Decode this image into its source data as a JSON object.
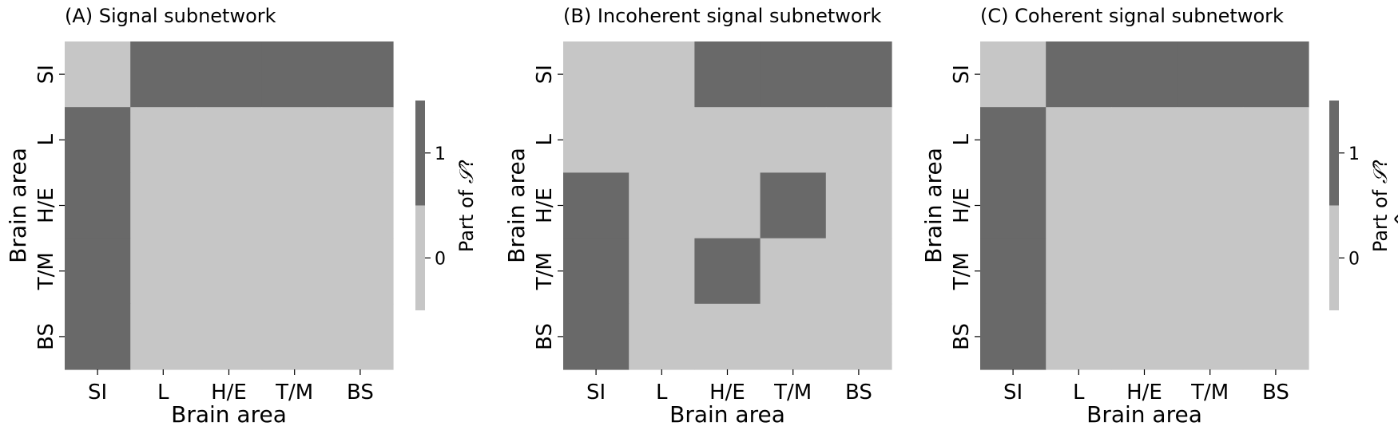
{
  "colors": {
    "off": "#c6c6c6",
    "on": "#696969"
  },
  "chart_data": [
    {
      "type": "heatmap",
      "title": "(A) Signal subnetwork",
      "xlabel": "Brain area",
      "ylabel": "Brain area",
      "categories": [
        "SI",
        "L",
        "H/E",
        "T/M",
        "BS"
      ],
      "values": [
        [
          0,
          1,
          1,
          1,
          1
        ],
        [
          1,
          0,
          0,
          0,
          0
        ],
        [
          1,
          0,
          0,
          0,
          0
        ],
        [
          1,
          0,
          0,
          0,
          0
        ],
        [
          1,
          0,
          0,
          0,
          0
        ]
      ],
      "colorbar": {
        "label_prefix": "Part of ",
        "label_symbol": "𝒮",
        "label_hat": "",
        "label_suffix": "?",
        "ticks": [
          "1",
          "0"
        ]
      }
    },
    {
      "type": "heatmap",
      "title": "(B) Incoherent signal subnetwork",
      "xlabel": "Brain area",
      "ylabel": "Brain area",
      "categories": [
        "SI",
        "L",
        "H/E",
        "T/M",
        "BS"
      ],
      "values": [
        [
          0,
          0,
          1,
          1,
          1
        ],
        [
          0,
          0,
          0,
          0,
          0
        ],
        [
          1,
          0,
          0,
          1,
          0
        ],
        [
          1,
          0,
          1,
          0,
          0
        ],
        [
          1,
          0,
          0,
          0,
          0
        ]
      ]
    },
    {
      "type": "heatmap",
      "title": "(C) Coherent signal subnetwork",
      "xlabel": "Brain area",
      "ylabel": "Brain area",
      "categories": [
        "SI",
        "L",
        "H/E",
        "T/M",
        "BS"
      ],
      "values": [
        [
          0,
          1,
          1,
          1,
          1
        ],
        [
          1,
          0,
          0,
          0,
          0
        ],
        [
          1,
          0,
          0,
          0,
          0
        ],
        [
          1,
          0,
          0,
          0,
          0
        ],
        [
          1,
          0,
          0,
          0,
          0
        ]
      ],
      "colorbar": {
        "label_prefix": "Part of ",
        "label_symbol": "𝒮",
        "label_hat": "^",
        "label_suffix": "?",
        "ticks": [
          "1",
          "0"
        ]
      }
    }
  ]
}
